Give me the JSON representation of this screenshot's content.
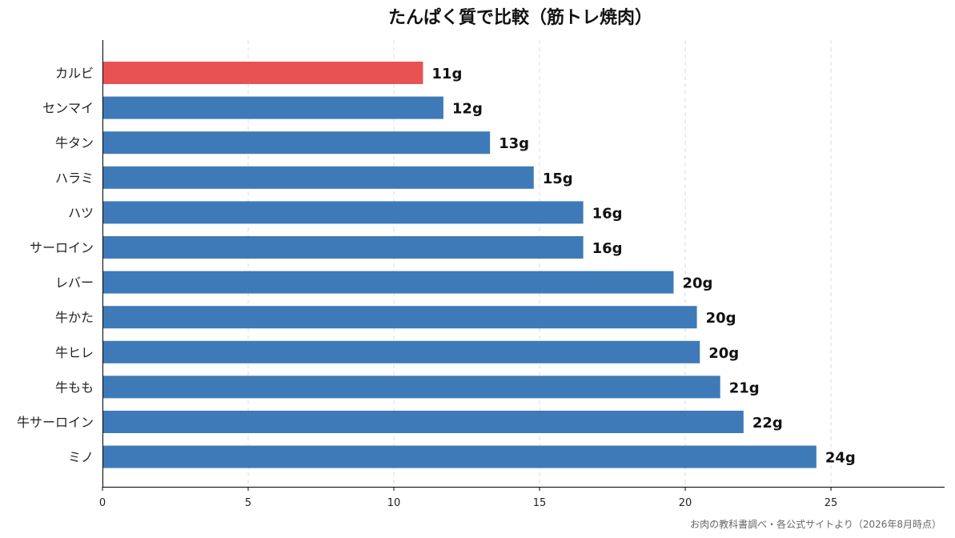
{
  "chart_data": {
    "type": "bar",
    "orientation": "horizontal",
    "title": "たんぱく質で比較（筋トレ焼肉）",
    "source_note": "お肉の教科書調べ・各公式サイトより（2026年8月時点）",
    "categories": [
      "カルビ",
      "センマイ",
      "牛タン",
      "ハラミ",
      "ハツ",
      "サーロイン",
      "レバー",
      "牛かた",
      "牛ヒレ",
      "牛もも",
      "牛サーロイン",
      "ミノ"
    ],
    "values": [
      11,
      11.7,
      13.3,
      14.8,
      16.5,
      16.5,
      19.6,
      20.4,
      20.5,
      21.2,
      22,
      24.5
    ],
    "value_labels": [
      "11g",
      "12g",
      "13g",
      "15g",
      "16g",
      "16g",
      "20g",
      "20g",
      "20g",
      "21g",
      "22g",
      "24g"
    ],
    "xlim": [
      0,
      28.9
    ],
    "xticks": [
      0,
      5,
      10,
      15,
      20,
      25
    ],
    "grid": "vertical-dashed",
    "highlight_index": 0,
    "colors": {
      "bar": "#3f7ab8",
      "highlight": "#e85252"
    }
  }
}
